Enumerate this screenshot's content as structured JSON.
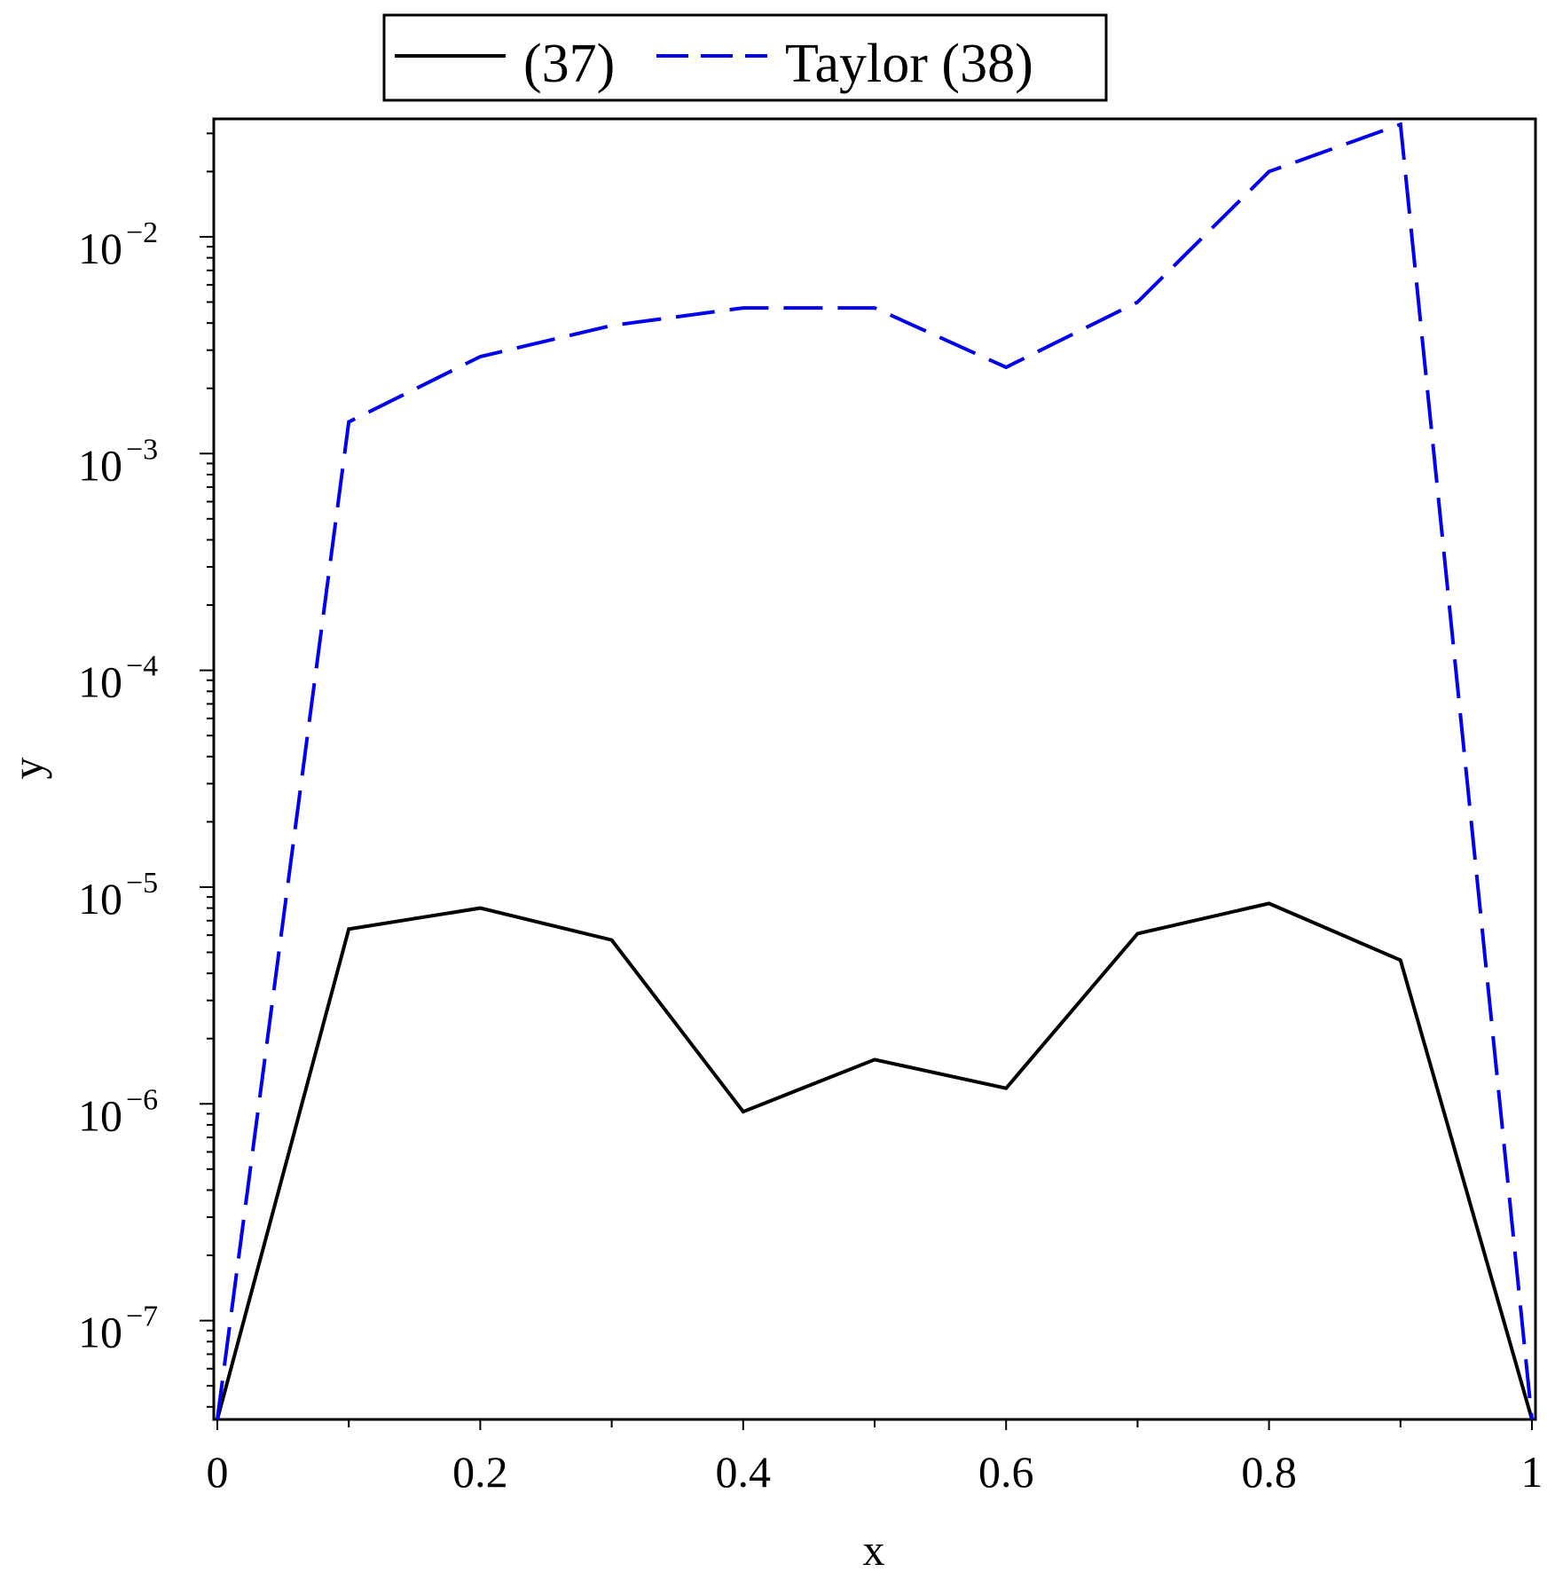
{
  "chart_data": {
    "type": "line",
    "xlabel": "x",
    "ylabel": "y",
    "xlim": [
      0,
      1
    ],
    "ylim": [
      3.5e-08,
      0.035
    ],
    "yscale": "log",
    "x_ticks": [
      {
        "value": 0,
        "label": "0"
      },
      {
        "value": 0.2,
        "label": "0.2"
      },
      {
        "value": 0.4,
        "label": "0.4"
      },
      {
        "value": 0.6,
        "label": "0.6"
      },
      {
        "value": 0.8,
        "label": "0.8"
      },
      {
        "value": 1,
        "label": "1"
      }
    ],
    "y_ticks": [
      {
        "value": 0.01,
        "base": "10",
        "exp": "−2"
      },
      {
        "value": 0.001,
        "base": "10",
        "exp": "−3"
      },
      {
        "value": 0.0001,
        "base": "10",
        "exp": "−4"
      },
      {
        "value": 1e-05,
        "base": "10",
        "exp": "−5"
      },
      {
        "value": 1e-06,
        "base": "10",
        "exp": "−6"
      },
      {
        "value": 1e-07,
        "base": "10",
        "exp": "−7"
      }
    ],
    "legend_placement": "top",
    "grid": false,
    "x": [
      0,
      0.1,
      0.2,
      0.3,
      0.4,
      0.5,
      0.6,
      0.7,
      0.8,
      0.9,
      1.0
    ],
    "series": [
      {
        "name": "(37)",
        "color": "#000000",
        "style": "solid",
        "values": [
          3.5e-08,
          6.4e-06,
          8e-06,
          5.7e-06,
          9.2e-07,
          1.6e-06,
          1.18e-06,
          6.1e-06,
          8.4e-06,
          4.6e-06,
          3.5e-08
        ]
      },
      {
        "name": "Taylor (38)",
        "color": "#0000ee",
        "style": "dashed",
        "values": [
          3.5e-08,
          0.0014,
          0.0028,
          0.0039,
          0.0047,
          0.0047,
          0.0025,
          0.005,
          0.02,
          0.033,
          3.5e-08
        ]
      }
    ]
  }
}
